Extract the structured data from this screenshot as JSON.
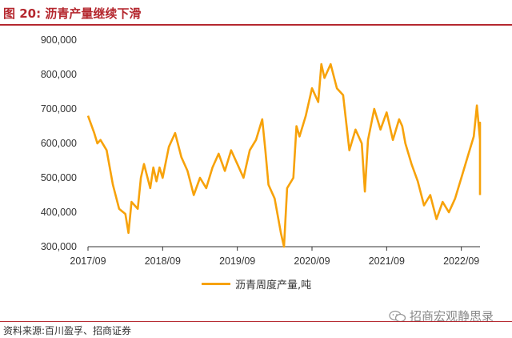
{
  "header": {
    "title": "图 20:  沥青产量继续下滑"
  },
  "watermark": {
    "text": "招商宏观静思录",
    "icon": "wechat-icon"
  },
  "source": {
    "text": "资料来源:百川盈孚、招商证券"
  },
  "colors": {
    "title": "#b5282f",
    "series": "#f7a20a"
  },
  "chart_data": {
    "type": "line",
    "title": "",
    "xlabel": "",
    "ylabel": "",
    "ylim": [
      300000,
      900000
    ],
    "yticks": [
      "900,000",
      "800,000",
      "700,000",
      "600,000",
      "500,000",
      "400,000",
      "300,000"
    ],
    "xtick_labels": [
      "2017/09",
      "2018/09",
      "2019/09",
      "2020/09",
      "2021/09",
      "2022/09"
    ],
    "xlim": [
      "2017/09",
      "2022/12"
    ],
    "legend": "bottom-center",
    "grid": false,
    "series": [
      {
        "name": "沥青周度产量,吨",
        "points": [
          [
            "2017/09",
            680000
          ],
          [
            "2017/10",
            630000
          ],
          [
            "2017/10",
            600000
          ],
          [
            "2017/11",
            610000
          ],
          [
            "2017/12",
            580000
          ],
          [
            "2018/01",
            480000
          ],
          [
            "2018/02",
            410000
          ],
          [
            "2018/03",
            395000
          ],
          [
            "2018/03",
            340000
          ],
          [
            "2018/04",
            430000
          ],
          [
            "2018/05",
            410000
          ],
          [
            "2018/05",
            500000
          ],
          [
            "2018/06",
            540000
          ],
          [
            "2018/07",
            470000
          ],
          [
            "2018/07",
            530000
          ],
          [
            "2018/08",
            490000
          ],
          [
            "2018/08",
            530000
          ],
          [
            "2018/09",
            500000
          ],
          [
            "2018/10",
            590000
          ],
          [
            "2018/11",
            630000
          ],
          [
            "2018/12",
            560000
          ],
          [
            "2019/01",
            520000
          ],
          [
            "2019/02",
            450000
          ],
          [
            "2019/03",
            500000
          ],
          [
            "2019/04",
            470000
          ],
          [
            "2019/05",
            530000
          ],
          [
            "2019/06",
            570000
          ],
          [
            "2019/07",
            520000
          ],
          [
            "2019/08",
            580000
          ],
          [
            "2019/09",
            540000
          ],
          [
            "2019/10",
            500000
          ],
          [
            "2019/11",
            580000
          ],
          [
            "2019/12",
            610000
          ],
          [
            "2020/01",
            670000
          ],
          [
            "2020/01",
            580000
          ],
          [
            "2020/02",
            480000
          ],
          [
            "2020/03",
            440000
          ],
          [
            "2020/04",
            340000
          ],
          [
            "2020/04",
            300000
          ],
          [
            "2020/05",
            470000
          ],
          [
            "2020/06",
            500000
          ],
          [
            "2020/06",
            650000
          ],
          [
            "2020/07",
            620000
          ],
          [
            "2020/08",
            680000
          ],
          [
            "2020/09",
            760000
          ],
          [
            "2020/10",
            720000
          ],
          [
            "2020/10",
            830000
          ],
          [
            "2020/11",
            790000
          ],
          [
            "2020/12",
            830000
          ],
          [
            "2021/01",
            760000
          ],
          [
            "2021/02",
            740000
          ],
          [
            "2021/03",
            580000
          ],
          [
            "2021/04",
            640000
          ],
          [
            "2021/05",
            600000
          ],
          [
            "2021/05",
            460000
          ],
          [
            "2021/06",
            610000
          ],
          [
            "2021/07",
            700000
          ],
          [
            "2021/08",
            640000
          ],
          [
            "2021/09",
            690000
          ],
          [
            "2021/10",
            610000
          ],
          [
            "2021/11",
            670000
          ],
          [
            "2021/11",
            650000
          ],
          [
            "2021/12",
            600000
          ],
          [
            "2022/01",
            540000
          ],
          [
            "2022/02",
            490000
          ],
          [
            "2022/03",
            420000
          ],
          [
            "2022/04",
            450000
          ],
          [
            "2022/05",
            380000
          ],
          [
            "2022/06",
            430000
          ],
          [
            "2022/07",
            400000
          ],
          [
            "2022/08",
            440000
          ],
          [
            "2022/09",
            500000
          ],
          [
            "2022/10",
            560000
          ],
          [
            "2022/11",
            620000
          ],
          [
            "2022/11",
            710000
          ],
          [
            "2022/12",
            610000
          ],
          [
            "2022/12",
            660000
          ],
          [
            "2022/12",
            450000
          ]
        ]
      }
    ]
  }
}
